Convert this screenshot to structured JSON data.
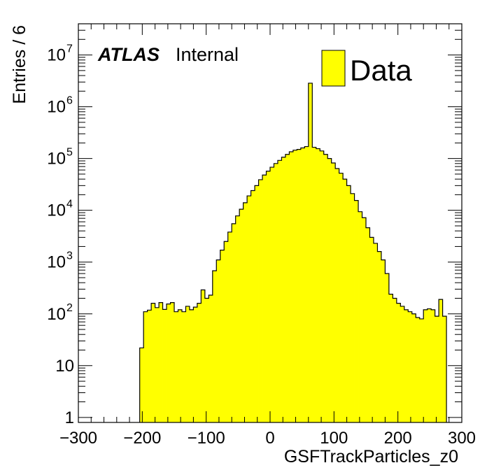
{
  "chart_data": {
    "type": "bar",
    "style": "histogram",
    "xlabel": "GSFTrackParticles_z0",
    "ylabel": "Entries / 6",
    "xlim": [
      -300,
      300
    ],
    "ylim": [
      0.8,
      40000000
    ],
    "y_scale": "log",
    "bin_width": 6,
    "x_ticks": [
      "−300",
      "−200",
      "−100",
      "0",
      "100",
      "200",
      "300"
    ],
    "y_ticks": [
      {
        "base": "1",
        "exp": ""
      },
      {
        "base": "10",
        "exp": ""
      },
      {
        "base": "10",
        "exp": "2"
      },
      {
        "base": "10",
        "exp": "3"
      },
      {
        "base": "10",
        "exp": "4"
      },
      {
        "base": "10",
        "exp": "5"
      },
      {
        "base": "10",
        "exp": "6"
      },
      {
        "base": "10",
        "exp": "7"
      }
    ],
    "bin_edges_start": -204,
    "series": [
      {
        "name": "Data",
        "color": "#ffff00",
        "values": [
          22,
          110,
          118,
          160,
          132,
          165,
          122,
          155,
          165,
          110,
          120,
          110,
          140,
          120,
          135,
          160,
          290,
          200,
          230,
          680,
          1100,
          1700,
          2500,
          3800,
          5500,
          7800,
          10500,
          14000,
          19000,
          24000,
          30000,
          39000,
          48000,
          57000,
          68000,
          80000,
          92000,
          106000,
          120000,
          135000,
          145000,
          150000,
          160000,
          170000,
          2850000,
          165000,
          155000,
          140000,
          120000,
          100000,
          82000,
          64000,
          52000,
          40000,
          30000,
          21000,
          15500,
          9400,
          7200,
          4600,
          3000,
          2300,
          1600,
          1100,
          600,
          240,
          200,
          160,
          140,
          120,
          110,
          100,
          85,
          80,
          120,
          125,
          120,
          90,
          190,
          90
        ]
      }
    ],
    "legend": {
      "placement": "top-right",
      "label": "Data"
    },
    "annotations": {
      "atlas": "ATLAS",
      "internal": "Internal"
    }
  }
}
